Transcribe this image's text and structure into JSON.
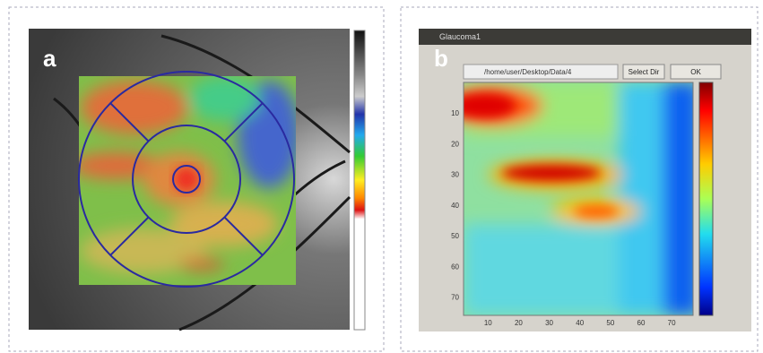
{
  "panels": [
    {
      "label": "a"
    },
    {
      "label": "b",
      "window": {
        "title": "Glaucoma1",
        "path": "/home/user/Desktop/Data/4",
        "buttons": [
          "Select Dir",
          "OK"
        ],
        "yticks": [
          10,
          20,
          30,
          40,
          50,
          60,
          70
        ],
        "xticks": [
          10,
          20,
          30,
          40,
          50,
          60,
          70
        ]
      }
    }
  ]
}
